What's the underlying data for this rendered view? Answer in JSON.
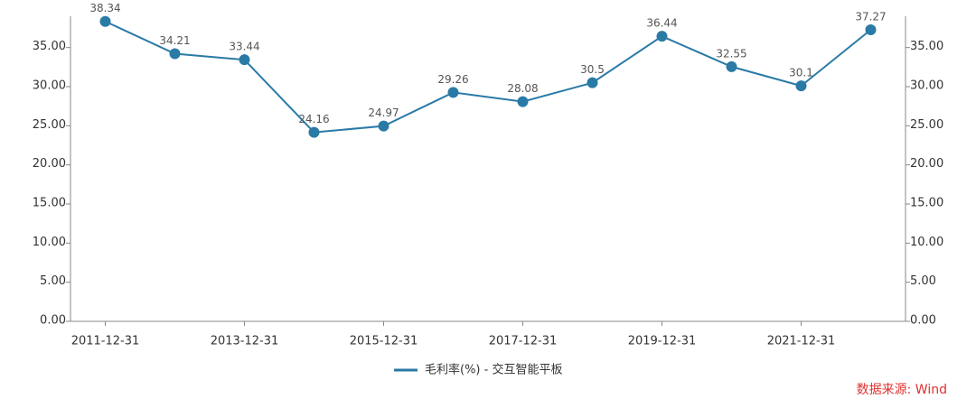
{
  "chart_data": {
    "type": "line",
    "categories": [
      "2011-12-31",
      null,
      "2013-12-31",
      null,
      "2015-12-31",
      null,
      "2017-12-31",
      null,
      "2019-12-31",
      null,
      "2021-12-31",
      null
    ],
    "series": [
      {
        "name": "毛利率(%) - 交互智能平板",
        "color": "#2a7aa6",
        "values": [
          38.34,
          34.21,
          33.44,
          24.16,
          24.97,
          29.26,
          28.08,
          30.5,
          36.44,
          32.55,
          30.1,
          37.27
        ]
      }
    ],
    "ylim": [
      0,
      39
    ],
    "yticks": [
      {
        "value": 0,
        "label": "0.00"
      },
      {
        "value": 5,
        "label": "5.00"
      },
      {
        "value": 10,
        "label": "10.00"
      },
      {
        "value": 15,
        "label": "15.00"
      },
      {
        "value": 20,
        "label": "20.00"
      },
      {
        "value": 25,
        "label": "25.00"
      },
      {
        "value": 30,
        "label": "30.00"
      },
      {
        "value": 35,
        "label": "35.00"
      }
    ],
    "y2lim": [
      0,
      39
    ],
    "y2ticks": [
      {
        "value": 0,
        "label": "0.00"
      },
      {
        "value": 5,
        "label": "5.00"
      },
      {
        "value": 10,
        "label": "10.00"
      },
      {
        "value": 15,
        "label": "15.00"
      },
      {
        "value": 20,
        "label": "20.00"
      },
      {
        "value": 25,
        "label": "25.00"
      },
      {
        "value": 30,
        "label": "30.00"
      },
      {
        "value": 35,
        "label": "35.00"
      }
    ],
    "legend": "bottom",
    "source": "数据来源: Wind"
  }
}
